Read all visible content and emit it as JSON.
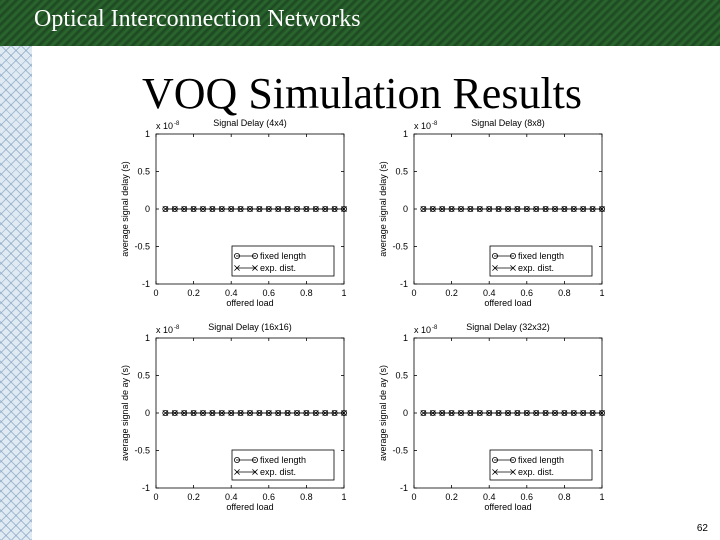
{
  "header": {
    "title": "Optical Interconnection Networks"
  },
  "slide": {
    "title": "VOQ Simulation Results",
    "page_number": "62"
  },
  "chart_data": [
    {
      "type": "line",
      "title": "Signal Delay (4x4)",
      "xlabel": "offered load",
      "ylabel": "average signal delay (s)",
      "scale_label": "x 10",
      "scale_exponent": "-8",
      "xlim": [
        0,
        1
      ],
      "ylim": [
        -1,
        1
      ],
      "xticks": [
        "0",
        "0.2",
        "0.4",
        "0.6",
        "0.8",
        "1"
      ],
      "yticks": [
        "1",
        "0.5",
        "0",
        "-0.5",
        "-1"
      ],
      "legend_position": "bottom-right",
      "grid": false,
      "x": [
        0.05,
        0.1,
        0.15,
        0.2,
        0.25,
        0.3,
        0.35,
        0.4,
        0.45,
        0.5,
        0.55,
        0.6,
        0.65,
        0.7,
        0.75,
        0.8,
        0.85,
        0.9,
        0.95,
        1.0
      ],
      "series": [
        {
          "name": "fixed length",
          "marker": "circle",
          "values": [
            0,
            0,
            0,
            0,
            0,
            0,
            0,
            0,
            0,
            0,
            0,
            0,
            0,
            0,
            0,
            0,
            0,
            0,
            0,
            0
          ]
        },
        {
          "name": "exp. dist.",
          "marker": "x",
          "values": [
            0,
            0,
            0,
            0,
            0,
            0,
            0,
            0,
            0,
            0,
            0,
            0,
            0,
            0,
            0,
            0,
            0,
            0,
            0,
            0
          ]
        }
      ]
    },
    {
      "type": "line",
      "title": "Signal Delay (8x8)",
      "xlabel": "offered load",
      "ylabel": "average signal delay (s)",
      "scale_label": "x 10",
      "scale_exponent": "-8",
      "xlim": [
        0,
        1
      ],
      "ylim": [
        -1,
        1
      ],
      "xticks": [
        "0",
        "0.2",
        "0.4",
        "0.6",
        "0.8",
        "1"
      ],
      "yticks": [
        "1",
        "0.5",
        "0",
        "-0.5",
        "-1"
      ],
      "legend_position": "bottom-right",
      "grid": false,
      "x": [
        0.05,
        0.1,
        0.15,
        0.2,
        0.25,
        0.3,
        0.35,
        0.4,
        0.45,
        0.5,
        0.55,
        0.6,
        0.65,
        0.7,
        0.75,
        0.8,
        0.85,
        0.9,
        0.95,
        1.0
      ],
      "series": [
        {
          "name": "fixed length",
          "marker": "circle",
          "values": [
            0,
            0,
            0,
            0,
            0,
            0,
            0,
            0,
            0,
            0,
            0,
            0,
            0,
            0,
            0,
            0,
            0,
            0,
            0,
            0
          ]
        },
        {
          "name": "exp. dist.",
          "marker": "x",
          "values": [
            0,
            0,
            0,
            0,
            0,
            0,
            0,
            0,
            0,
            0,
            0,
            0,
            0,
            0,
            0,
            0,
            0,
            0,
            0,
            0
          ]
        }
      ]
    },
    {
      "type": "line",
      "title": "Signal Delay (16x16)",
      "xlabel": "offered load",
      "ylabel": "average signal de ay (s)",
      "scale_label": "x 10",
      "scale_exponent": "-8",
      "xlim": [
        0,
        1
      ],
      "ylim": [
        -1,
        1
      ],
      "xticks": [
        "0",
        "0.2",
        "0.4",
        "0.6",
        "0.8",
        "1"
      ],
      "yticks": [
        "1",
        "0.5",
        "0",
        "-0.5",
        "-1"
      ],
      "legend_position": "bottom-right",
      "grid": false,
      "x": [
        0.05,
        0.1,
        0.15,
        0.2,
        0.25,
        0.3,
        0.35,
        0.4,
        0.45,
        0.5,
        0.55,
        0.6,
        0.65,
        0.7,
        0.75,
        0.8,
        0.85,
        0.9,
        0.95,
        1.0
      ],
      "series": [
        {
          "name": "fixed length",
          "marker": "circle",
          "values": [
            0,
            0,
            0,
            0,
            0,
            0,
            0,
            0,
            0,
            0,
            0,
            0,
            0,
            0,
            0,
            0,
            0,
            0,
            0,
            0
          ]
        },
        {
          "name": "exp. dist.",
          "marker": "x",
          "values": [
            0,
            0,
            0,
            0,
            0,
            0,
            0,
            0,
            0,
            0,
            0,
            0,
            0,
            0,
            0,
            0,
            0,
            0,
            0,
            0
          ]
        }
      ]
    },
    {
      "type": "line",
      "title": "Signal Delay (32x32)",
      "xlabel": "offered load",
      "ylabel": "average signal de ay (s)",
      "scale_label": "x 10",
      "scale_exponent": "-8",
      "xlim": [
        0,
        1
      ],
      "ylim": [
        -1,
        1
      ],
      "xticks": [
        "0",
        "0.2",
        "0.4",
        "0.6",
        "0.8",
        "1"
      ],
      "yticks": [
        "1",
        "0.5",
        "0",
        "-0.5",
        "-1"
      ],
      "legend_position": "bottom-right",
      "grid": false,
      "x": [
        0.05,
        0.1,
        0.15,
        0.2,
        0.25,
        0.3,
        0.35,
        0.4,
        0.45,
        0.5,
        0.55,
        0.6,
        0.65,
        0.7,
        0.75,
        0.8,
        0.85,
        0.9,
        0.95,
        1.0
      ],
      "series": [
        {
          "name": "fixed length",
          "marker": "circle",
          "values": [
            0,
            0,
            0,
            0,
            0,
            0,
            0,
            0,
            0,
            0,
            0,
            0,
            0,
            0,
            0,
            0,
            0,
            0,
            0,
            0
          ]
        },
        {
          "name": "exp. dist.",
          "marker": "x",
          "values": [
            0,
            0,
            0,
            0,
            0,
            0,
            0,
            0,
            0,
            0,
            0,
            0,
            0,
            0,
            0,
            0,
            0,
            0,
            0,
            0
          ]
        }
      ]
    }
  ]
}
